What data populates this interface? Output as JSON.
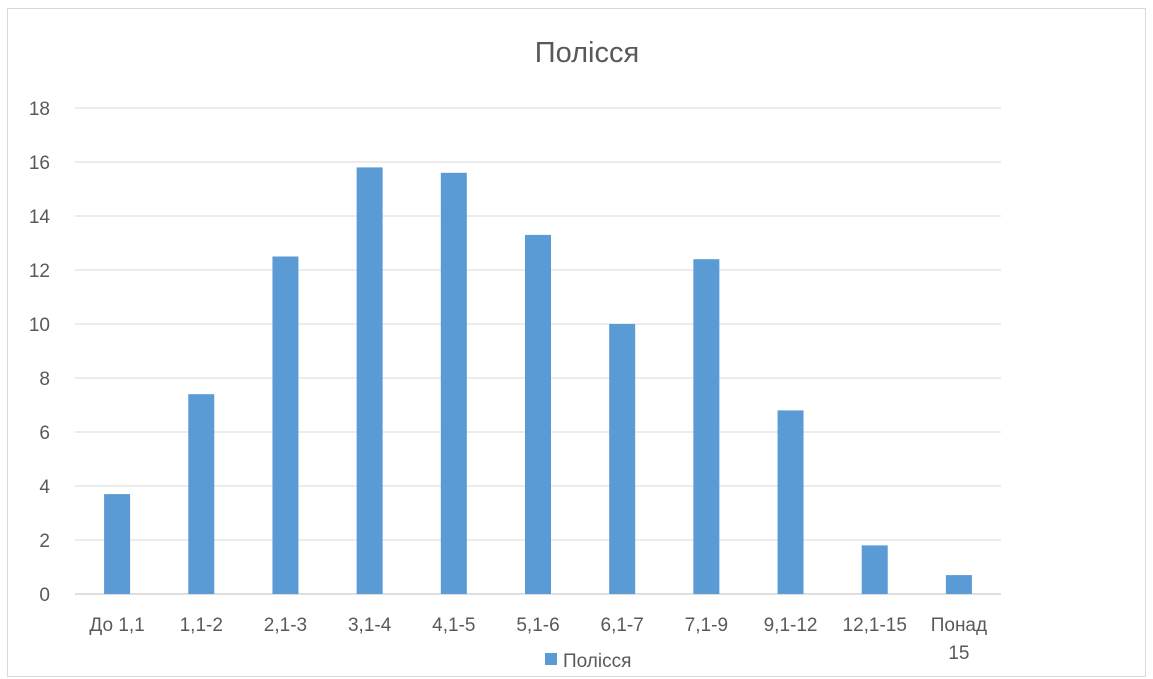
{
  "chart_data": {
    "type": "bar",
    "title": "Полісся",
    "xlabel": "",
    "ylabel": "",
    "categories": [
      "До 1,1",
      "1,1-2",
      "2,1-3",
      "3,1-4",
      "4,1-5",
      "5,1-6",
      "6,1-7",
      "7,1-9",
      "9,1-12",
      "12,1-15",
      "Понад 15"
    ],
    "series": [
      {
        "name": "Полісся",
        "color": "#5b9bd5",
        "values": [
          3.7,
          7.4,
          12.5,
          15.8,
          15.6,
          13.3,
          10.0,
          12.4,
          6.8,
          1.8,
          0.7
        ]
      }
    ],
    "ylim": [
      0,
      18
    ],
    "yticks": [
      "0",
      "2",
      "4",
      "6",
      "8",
      "10",
      "12",
      "14",
      "16",
      "18"
    ],
    "grid": true,
    "legend_position": "bottom"
  }
}
